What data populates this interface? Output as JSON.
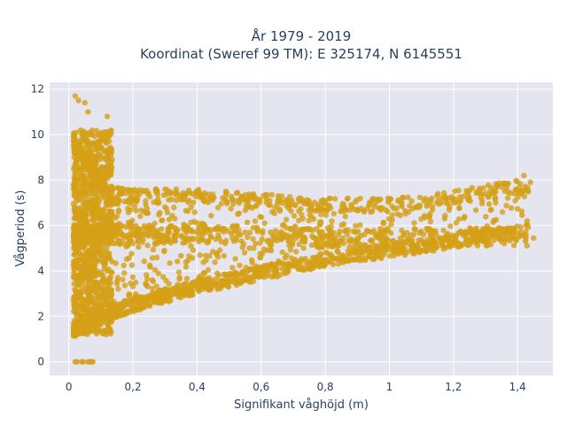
{
  "chart_data": {
    "type": "scatter",
    "title_line1": "År 1979 - 2019",
    "title_line2": "Koordinat (Sweref 99 TM): E 325174, N 6145551",
    "xlabel": "Signifikant våghöjd (m)",
    "ylabel": "Vågperiod (s)",
    "xlim": [
      -0.06,
      1.51
    ],
    "ylim": [
      -0.6,
      12.3
    ],
    "x_ticks": [
      {
        "value": 0,
        "label": "0"
      },
      {
        "value": 0.2,
        "label": "0,2"
      },
      {
        "value": 0.4,
        "label": "0,4"
      },
      {
        "value": 0.6,
        "label": "0,6"
      },
      {
        "value": 0.8,
        "label": "0,8"
      },
      {
        "value": 1.0,
        "label": "1"
      },
      {
        "value": 1.2,
        "label": "1,2"
      },
      {
        "value": 1.4,
        "label": "1,4"
      }
    ],
    "y_ticks": [
      {
        "value": 0,
        "label": "0"
      },
      {
        "value": 2,
        "label": "2"
      },
      {
        "value": 4,
        "label": "4"
      },
      {
        "value": 6,
        "label": "6"
      },
      {
        "value": 8,
        "label": "8"
      },
      {
        "value": 10,
        "label": "10"
      },
      {
        "value": 12,
        "label": "12"
      }
    ],
    "grid": true,
    "marker_color": "#d4a017",
    "plot_background": "#e5e5f0",
    "envelope": {
      "lower_band": [
        [
          0.02,
          1.1
        ],
        [
          0.1,
          1.7
        ],
        [
          0.2,
          2.2
        ],
        [
          0.3,
          2.6
        ],
        [
          0.4,
          3.0
        ],
        [
          0.5,
          3.3
        ],
        [
          0.6,
          3.6
        ],
        [
          0.7,
          3.9
        ],
        [
          0.8,
          4.2
        ],
        [
          0.9,
          4.4
        ],
        [
          1.0,
          4.6
        ],
        [
          1.1,
          4.8
        ],
        [
          1.2,
          5.0
        ],
        [
          1.3,
          5.3
        ],
        [
          1.4,
          5.4
        ],
        [
          1.44,
          5.45
        ]
      ],
      "upper_band": [
        [
          0.05,
          7.8
        ],
        [
          0.2,
          7.6
        ],
        [
          0.4,
          7.6
        ],
        [
          0.6,
          7.4
        ],
        [
          0.8,
          7.2
        ],
        [
          1.0,
          7.2
        ],
        [
          1.1,
          7.3
        ],
        [
          1.2,
          7.5
        ],
        [
          1.3,
          7.8
        ],
        [
          1.4,
          8.0
        ]
      ],
      "mid_band": [
        [
          0.1,
          5.6
        ],
        [
          0.3,
          5.6
        ],
        [
          0.5,
          5.6
        ],
        [
          0.7,
          5.5
        ],
        [
          0.9,
          5.4
        ],
        [
          1.0,
          5.4
        ],
        [
          1.1,
          5.5
        ]
      ],
      "zero_cluster": [
        [
          0.02,
          0.0
        ],
        [
          0.04,
          0.0
        ],
        [
          0.06,
          0.0
        ],
        [
          0.07,
          0.0
        ]
      ],
      "peak_points": [
        [
          0.02,
          11.7
        ],
        [
          0.03,
          11.5
        ],
        [
          0.05,
          11.4
        ],
        [
          0.06,
          11.0
        ],
        [
          0.12,
          10.8
        ],
        [
          0.04,
          10.0
        ]
      ],
      "outliers": [
        [
          1.44,
          7.9
        ],
        [
          1.42,
          8.2
        ],
        [
          1.45,
          5.45
        ],
        [
          1.38,
          5.7
        ],
        [
          1.25,
          5.7
        ],
        [
          1.2,
          7.0
        ]
      ]
    }
  }
}
